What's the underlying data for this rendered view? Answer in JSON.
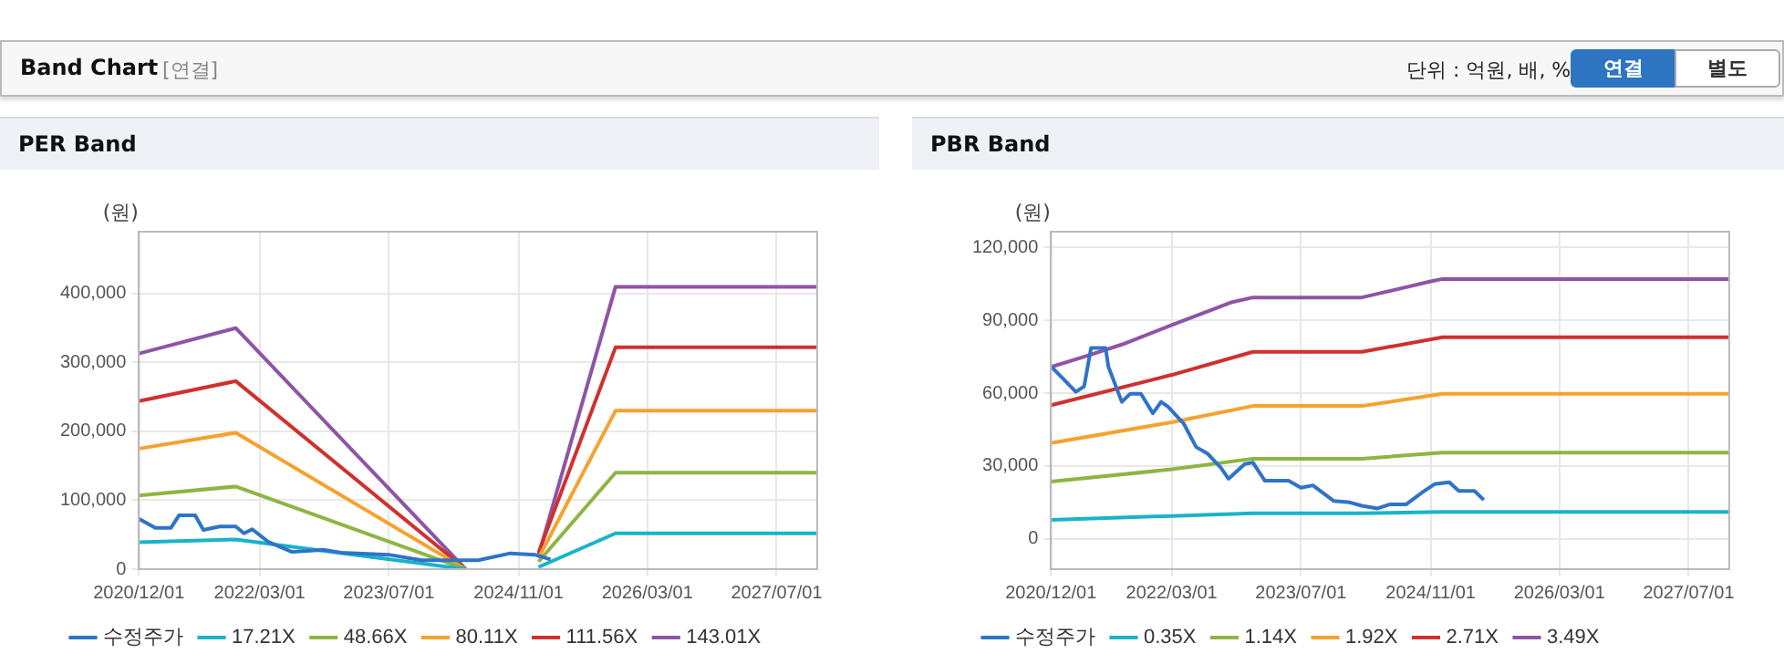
{
  "chart_data": [
    {
      "type": "other",
      "title": "Band Chart",
      "annotations": [
        "[연결]",
        "단위 : 억원, 배, %",
        "연결",
        "별도"
      ]
    },
    {
      "type": "line",
      "title": "PER Band",
      "ylabel": "(원)",
      "xlim": [
        "2020-12-01",
        "2027-12-01"
      ],
      "ylim": [
        0,
        490000
      ],
      "xticks": [
        {
          "value": "2020-12-01",
          "label": "2020/12/01"
        },
        {
          "value": "2022-03-01",
          "label": "2022/03/01"
        },
        {
          "value": "2023-07-01",
          "label": "2023/07/01"
        },
        {
          "value": "2024-11-01",
          "label": "2024/11/01"
        },
        {
          "value": "2026-03-01",
          "label": "2026/03/01"
        },
        {
          "value": "2027-07-01",
          "label": "2027/07/01"
        }
      ],
      "yticks": [
        0,
        {
          "value": 100000,
          "label": "100,000"
        },
        {
          "value": 200000,
          "label": "200,000"
        },
        {
          "value": 300000,
          "label": "300,000"
        },
        {
          "value": 400000,
          "label": "400,000"
        }
      ],
      "grid": true,
      "legend": "bottom",
      "marker": "none",
      "line_style": "solid",
      "series": [
        {
          "name": "수정주가",
          "color": "#2f73c9",
          "x": [
            "2020-12-01",
            "2021-02-01",
            "2021-04-01",
            "2021-05-01",
            "2021-07-01",
            "2021-08-01",
            "2021-10-01",
            "2021-12-01",
            "2022-01-01",
            "2022-02-01",
            "2022-04-01",
            "2022-07-01",
            "2022-11-01",
            "2023-01-01",
            "2023-07-01",
            "2023-11-01",
            "2024-06-01",
            "2024-10-01",
            "2025-01-01",
            "2025-03-01"
          ],
          "values": [
            73000,
            60000,
            60000,
            78000,
            78000,
            57000,
            62000,
            62000,
            52000,
            58000,
            40000,
            25000,
            28000,
            24000,
            21000,
            13000,
            13000,
            23000,
            21000,
            14000
          ]
        },
        {
          "name": "17.21X",
          "color": "#19b3c9",
          "x": [
            "2020-12-01",
            "2021-12-01",
            "2024-04-15",
            "2024-09-01",
            "2025-01-15",
            "2025-11-01",
            "2027-12-01"
          ],
          "values": [
            39000,
            43000,
            0,
            null,
            3000,
            52000,
            52000
          ]
        },
        {
          "name": "48.66X",
          "color": "#8db543",
          "x": [
            "2020-12-01",
            "2021-12-01",
            "2024-04-15",
            "2024-09-01",
            "2025-01-15",
            "2025-11-01",
            "2027-12-01"
          ],
          "values": [
            107000,
            120000,
            0,
            null,
            11000,
            140000,
            140000
          ]
        },
        {
          "name": "80.11X",
          "color": "#f5a22e",
          "x": [
            "2020-12-01",
            "2021-12-01",
            "2024-04-15",
            "2024-09-01",
            "2025-01-15",
            "2025-11-01",
            "2027-12-01"
          ],
          "values": [
            175000,
            198000,
            0,
            null,
            16000,
            230000,
            230000
          ]
        },
        {
          "name": "111.56X",
          "color": "#d0302e",
          "x": [
            "2020-12-01",
            "2021-12-01",
            "2024-04-15",
            "2024-09-01",
            "2025-01-15",
            "2025-11-01",
            "2027-12-01"
          ],
          "values": [
            244000,
            273000,
            0,
            null,
            24000,
            322000,
            322000
          ]
        },
        {
          "name": "143.01X",
          "color": "#8e54a6",
          "x": [
            "2020-12-01",
            "2021-12-01",
            "2024-04-15",
            "2024-09-01",
            "2025-01-15",
            "2025-11-01",
            "2027-12-01"
          ],
          "values": [
            313000,
            350000,
            0,
            null,
            20000,
            410000,
            410000
          ]
        }
      ]
    },
    {
      "type": "line",
      "title": "PBR Band",
      "ylabel": "(원)",
      "xlim": [
        "2020-12-01",
        "2027-12-01"
      ],
      "ylim": [
        -12500,
        126500
      ],
      "xticks": [
        {
          "value": "2020-12-01",
          "label": "2020/12/01"
        },
        {
          "value": "2022-03-01",
          "label": "2022/03/01"
        },
        {
          "value": "2023-07-01",
          "label": "2023/07/01"
        },
        {
          "value": "2024-11-01",
          "label": "2024/11/01"
        },
        {
          "value": "2026-03-01",
          "label": "2026/03/01"
        },
        {
          "value": "2027-07-01",
          "label": "2027/07/01"
        }
      ],
      "yticks": [
        0,
        {
          "value": 30000,
          "label": "30,000"
        },
        {
          "value": 60000,
          "label": "60,000"
        },
        {
          "value": 90000,
          "label": "90,000"
        },
        {
          "value": 120000,
          "label": "120,000"
        }
      ],
      "grid": true,
      "legend": "bottom",
      "marker": "none",
      "line_style": "solid",
      "series": [
        {
          "name": "수정주가",
          "color": "#2f73c9",
          "x": [
            "2020-12-01",
            "2021-03-05",
            "2021-04-05",
            "2021-05-01",
            "2021-06-25",
            "2021-07-05",
            "2021-08-25",
            "2021-09-25",
            "2021-11-05",
            "2021-12-20",
            "2022-01-20",
            "2022-02-15",
            "2022-04-15",
            "2022-06-01",
            "2022-07-15",
            "2022-09-01",
            "2022-10-01",
            "2022-12-01",
            "2023-01-01",
            "2023-02-15",
            "2023-05-15",
            "2023-07-01",
            "2023-08-15",
            "2023-11-01",
            "2024-01-01",
            "2024-02-15",
            "2024-04-15",
            "2024-06-01",
            "2024-08-01",
            "2024-10-01",
            "2024-11-15",
            "2025-01-10",
            "2025-02-15",
            "2025-04-15",
            "2025-05-20"
          ],
          "values": [
            71000,
            60500,
            62800,
            78600,
            78600,
            71000,
            56400,
            59700,
            59700,
            51700,
            56400,
            54400,
            47500,
            37800,
            35000,
            29400,
            24700,
            30800,
            31400,
            23900,
            23900,
            21000,
            22000,
            15600,
            15000,
            13600,
            12500,
            14200,
            14200,
            19200,
            22500,
            23300,
            19700,
            19700,
            16000
          ]
        },
        {
          "name": "0.35X",
          "color": "#19b3c9",
          "x": [
            "2020-12-01",
            "2022-03-01",
            "2023-01-01",
            "2024-02-15",
            "2024-12-15",
            "2027-12-01"
          ],
          "values": [
            7800,
            9400,
            10500,
            10500,
            11100,
            11100
          ]
        },
        {
          "name": "1.14X",
          "color": "#8db543",
          "x": [
            "2020-12-01",
            "2022-03-01",
            "2023-01-01",
            "2024-02-15",
            "2024-12-15",
            "2027-12-01"
          ],
          "values": [
            23600,
            28600,
            33000,
            33000,
            35500,
            35500
          ]
        },
        {
          "name": "1.92X",
          "color": "#f5a22e",
          "x": [
            "2020-12-01",
            "2022-03-01",
            "2023-01-01",
            "2024-02-15",
            "2024-12-15",
            "2027-12-01"
          ],
          "values": [
            39400,
            48000,
            54700,
            54700,
            59700,
            59700
          ]
        },
        {
          "name": "2.71X",
          "color": "#d0302e",
          "x": [
            "2020-12-01",
            "2022-03-01",
            "2023-01-01",
            "2024-02-15",
            "2024-12-15",
            "2027-12-01"
          ],
          "values": [
            55000,
            67500,
            77000,
            77000,
            83000,
            83000
          ]
        },
        {
          "name": "3.49X",
          "color": "#8e54a6",
          "x": [
            "2020-12-01",
            "2021-04-05",
            "2021-08-25",
            "2022-03-01",
            "2022-10-15",
            "2023-01-01",
            "2024-02-15",
            "2024-11-01",
            "2024-12-15",
            "2027-12-01"
          ],
          "values": [
            70800,
            75000,
            80000,
            88000,
            97500,
            99400,
            99400,
            106000,
            107000,
            107000
          ]
        }
      ]
    }
  ]
}
